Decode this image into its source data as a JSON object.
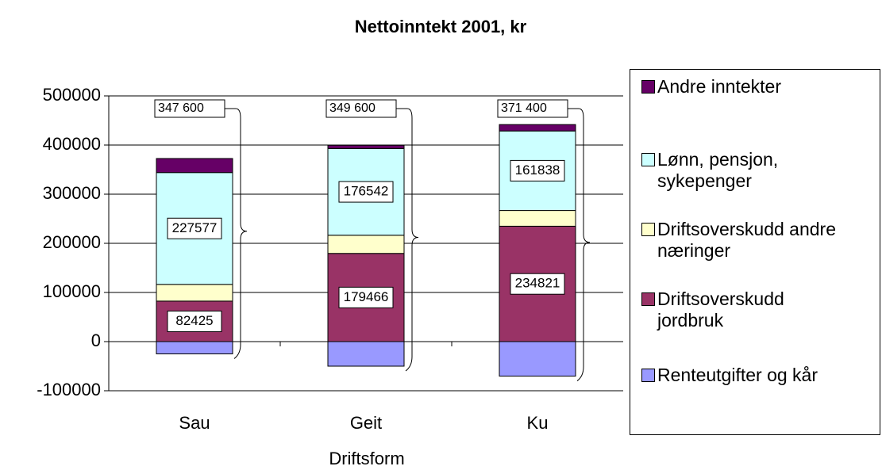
{
  "chart_data": {
    "type": "stacked-bar",
    "title": "Nettoinntekt 2001, kr",
    "x_label": "Driftsform",
    "categories": [
      "Sau",
      "Geit",
      "Ku"
    ],
    "series": [
      {
        "name": "Renteutgifter og kår",
        "color": "#9999ff",
        "values": [
          -25000,
          -50000,
          -70300
        ]
      },
      {
        "name": "Driftsoverskudd jordbruk",
        "color": "#993366",
        "values": [
          82425,
          179466,
          234821
        ],
        "show_labels": true
      },
      {
        "name": "Driftsoverskudd andre næringer",
        "color": "#ffffcc",
        "values": [
          34000,
          37000,
          32000
        ]
      },
      {
        "name": "Lønn, pensjon, sykepenger",
        "color": "#ccffff",
        "values": [
          227577,
          176542,
          161838
        ],
        "show_labels": true
      },
      {
        "name": "Andre inntekter",
        "color": "#660066",
        "values": [
          28600,
          6600,
          13000
        ]
      }
    ],
    "annotations": [
      "347 600",
      "349 600",
      "371 400"
    ],
    "ylim": [
      -100000,
      500000
    ],
    "yticks": [
      -100000,
      0,
      100000,
      200000,
      300000,
      400000,
      500000
    ],
    "grid": true
  }
}
